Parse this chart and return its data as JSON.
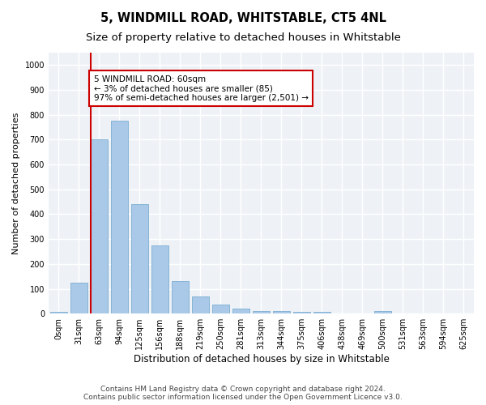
{
  "title": "5, WINDMILL ROAD, WHITSTABLE, CT5 4NL",
  "subtitle": "Size of property relative to detached houses in Whitstable",
  "xlabel": "Distribution of detached houses by size in Whitstable",
  "ylabel": "Number of detached properties",
  "categories": [
    "0sqm",
    "31sqm",
    "63sqm",
    "94sqm",
    "125sqm",
    "156sqm",
    "188sqm",
    "219sqm",
    "250sqm",
    "281sqm",
    "313sqm",
    "344sqm",
    "375sqm",
    "406sqm",
    "438sqm",
    "469sqm",
    "500sqm",
    "531sqm",
    "563sqm",
    "594sqm",
    "625sqm"
  ],
  "values": [
    7,
    125,
    700,
    775,
    440,
    275,
    130,
    68,
    38,
    20,
    10,
    10,
    7,
    7,
    0,
    0,
    10,
    0,
    0,
    0,
    0
  ],
  "bar_color": "#aac8e8",
  "bar_edge_color": "#7aaed0",
  "highlight_line_color": "#cc0000",
  "annotation_text": "5 WINDMILL ROAD: 60sqm\n← 3% of detached houses are smaller (85)\n97% of semi-detached houses are larger (2,501) →",
  "annotation_box_color": "#ffffff",
  "annotation_box_edge_color": "#cc0000",
  "ylim": [
    0,
    1050
  ],
  "yticks": [
    0,
    100,
    200,
    300,
    400,
    500,
    600,
    700,
    800,
    900,
    1000
  ],
  "background_color": "#eef2f7",
  "grid_color": "#ffffff",
  "figure_bg": "#ffffff",
  "footer_text": "Contains HM Land Registry data © Crown copyright and database right 2024.\nContains public sector information licensed under the Open Government Licence v3.0.",
  "title_fontsize": 10.5,
  "subtitle_fontsize": 9.5,
  "xlabel_fontsize": 8.5,
  "ylabel_fontsize": 8,
  "tick_fontsize": 7,
  "annotation_fontsize": 7.5,
  "footer_fontsize": 6.5
}
